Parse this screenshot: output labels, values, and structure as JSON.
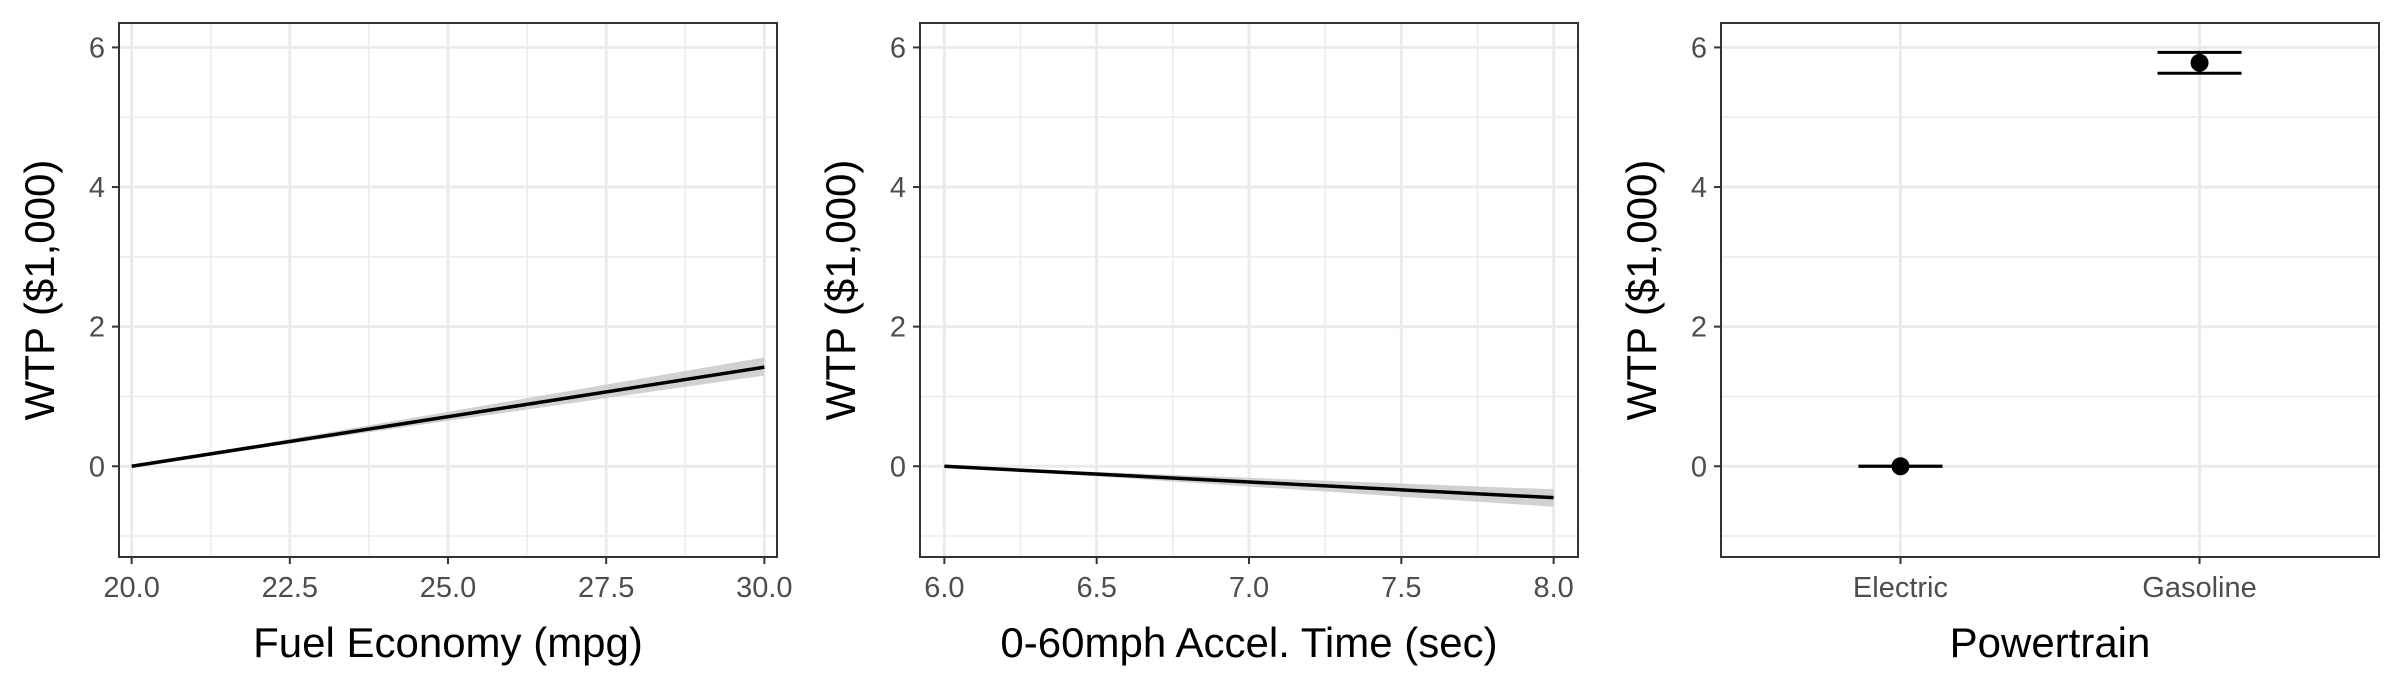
{
  "chart_data": [
    {
      "type": "line",
      "xlabel": "Fuel Economy (mpg)",
      "ylabel": "WTP ($1,000)",
      "xlim": [
        19.8,
        30.2
      ],
      "ylim": [
        -1.3,
        6.35
      ],
      "x_ticks": [
        20.0,
        22.5,
        25.0,
        27.5,
        30.0
      ],
      "x_tick_labels": [
        "20.0",
        "22.5",
        "25.0",
        "27.5",
        "30.0"
      ],
      "y_ticks": [
        0,
        2,
        4,
        6
      ],
      "y_tick_labels": [
        "0",
        "2",
        "4",
        "6"
      ],
      "grid": true,
      "series": [
        {
          "x": [
            20.0,
            30.0
          ],
          "y": [
            0.0,
            1.42
          ],
          "ci_lower": [
            0.0,
            1.3
          ],
          "ci_upper": [
            0.0,
            1.56
          ],
          "color": "#000000",
          "ribbon_color": "#cccccc"
        }
      ]
    },
    {
      "type": "line",
      "xlabel": "0-60mph Accel. Time (sec)",
      "ylabel": "WTP ($1,000)",
      "xlim": [
        5.92,
        8.08
      ],
      "ylim": [
        -1.3,
        6.35
      ],
      "x_ticks": [
        6.0,
        6.5,
        7.0,
        7.5,
        8.0
      ],
      "x_tick_labels": [
        "6.0",
        "6.5",
        "7.0",
        "7.5",
        "8.0"
      ],
      "y_ticks": [
        0,
        2,
        4,
        6
      ],
      "y_tick_labels": [
        "0",
        "2",
        "4",
        "6"
      ],
      "grid": true,
      "series": [
        {
          "x": [
            6.0,
            8.0
          ],
          "y": [
            0.0,
            -0.45
          ],
          "ci_lower": [
            0.0,
            -0.58
          ],
          "ci_upper": [
            0.0,
            -0.33
          ],
          "color": "#000000",
          "ribbon_color": "#cccccc"
        }
      ]
    },
    {
      "type": "scatter",
      "xlabel": "Powertrain",
      "ylabel": "WTP ($1,000)",
      "categories": [
        "Electric",
        "Gasoline"
      ],
      "ylim": [
        -1.3,
        6.35
      ],
      "y_ticks": [
        0,
        2,
        4,
        6
      ],
      "y_tick_labels": [
        "0",
        "2",
        "4",
        "6"
      ],
      "grid": true,
      "series": [
        {
          "values": [
            0.0,
            5.78
          ],
          "error_lower": [
            0.0,
            5.63
          ],
          "error_upper": [
            0.0,
            5.93
          ],
          "color": "#000000"
        }
      ]
    }
  ]
}
